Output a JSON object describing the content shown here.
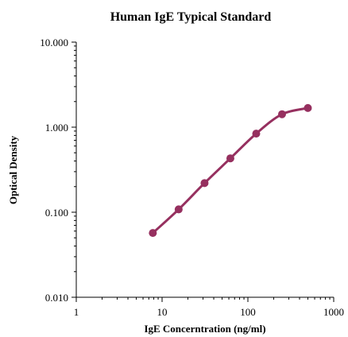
{
  "chart_data": {
    "type": "line",
    "title": "Human IgE Typical Standard",
    "xlabel": "IgE Concerntration (ng/ml)",
    "ylabel": "Optical Density",
    "x_scale": "log",
    "y_scale": "log",
    "xlim": [
      1,
      1000
    ],
    "ylim": [
      0.01,
      10
    ],
    "x_ticks": [
      1,
      10,
      100,
      1000
    ],
    "x_tick_labels": [
      "1",
      "10",
      "100",
      "1000"
    ],
    "y_ticks": [
      10,
      1,
      0.1,
      0.01
    ],
    "y_tick_labels": [
      "10.000",
      "1.000",
      "0.100",
      "0.010"
    ],
    "grid": false,
    "legend": false,
    "series_color": "#96305f",
    "series": [
      {
        "x": [
          7.8,
          15.6,
          31.25,
          62.5,
          125,
          250,
          500
        ],
        "y": [
          0.057,
          0.108,
          0.22,
          0.43,
          0.84,
          1.42,
          1.68
        ]
      }
    ]
  }
}
